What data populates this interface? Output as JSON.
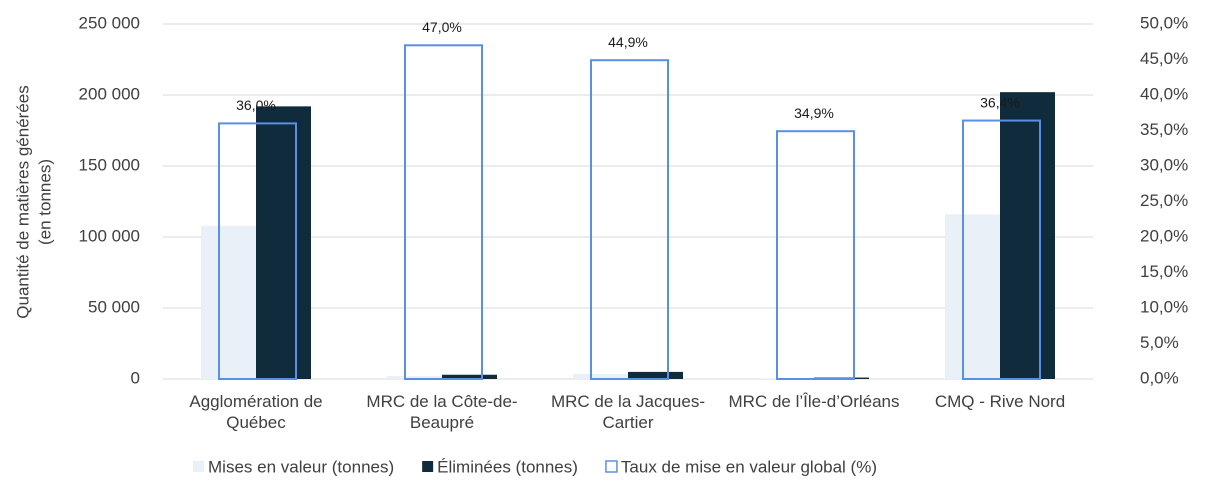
{
  "chart_data": {
    "type": "bar",
    "ylabel": [
      "Quantité de matières générées",
      "(en tonnes)"
    ],
    "categories": [
      "Agglomération de Québec",
      "MRC de la Côte-de-Beaupré",
      "MRC de la Jacques-Cartier",
      "MRC de l’Île-d’Orléans",
      "CMQ - Rive Nord"
    ],
    "series": [
      {
        "name": "Mises en valeur (tonnes)",
        "color": "#eaf0f8",
        "values": [
          108000,
          2000,
          3500,
          500,
          116000
        ]
      },
      {
        "name": "Éliminées (tonnes)",
        "color": "#0f2b3c",
        "values": [
          192000,
          3000,
          5000,
          1000,
          202000
        ]
      },
      {
        "name": "Taux de mise en valeur global (%)",
        "color": "#5b8fe3",
        "axis": "y2",
        "outline": true,
        "values": [
          36.0,
          47.0,
          44.9,
          34.9,
          36.4
        ],
        "value_labels": [
          "36,0%",
          "47,0%",
          "44,9%",
          "34,9%",
          "36,4%"
        ]
      }
    ],
    "ylim": [
      0,
      250000
    ],
    "yticks": [
      0,
      {
        "value": 50000,
        "label": "50 000"
      },
      {
        "value": 100000,
        "label": "100 000"
      },
      {
        "value": 150000,
        "label": "150 000"
      },
      {
        "value": 200000,
        "label": "200 000"
      },
      {
        "value": 250000,
        "label": "250 000"
      }
    ],
    "y2lim": [
      0,
      50
    ],
    "y2ticks": [
      {
        "value": 0,
        "label": "0,0%"
      },
      {
        "value": 5,
        "label": "5,0%"
      },
      {
        "value": 10,
        "label": "10,0%"
      },
      {
        "value": 15,
        "label": "15,0%"
      },
      {
        "value": 20,
        "label": "20,0%"
      },
      {
        "value": 25,
        "label": "25,0%"
      },
      {
        "value": 30,
        "label": "30,0%"
      },
      {
        "value": 35,
        "label": "35,0%"
      },
      {
        "value": 40,
        "label": "40,0%"
      },
      {
        "value": 45,
        "label": "45,0%"
      },
      {
        "value": 50,
        "label": "50,0%"
      }
    ],
    "grid": true,
    "legend": "bottom"
  }
}
